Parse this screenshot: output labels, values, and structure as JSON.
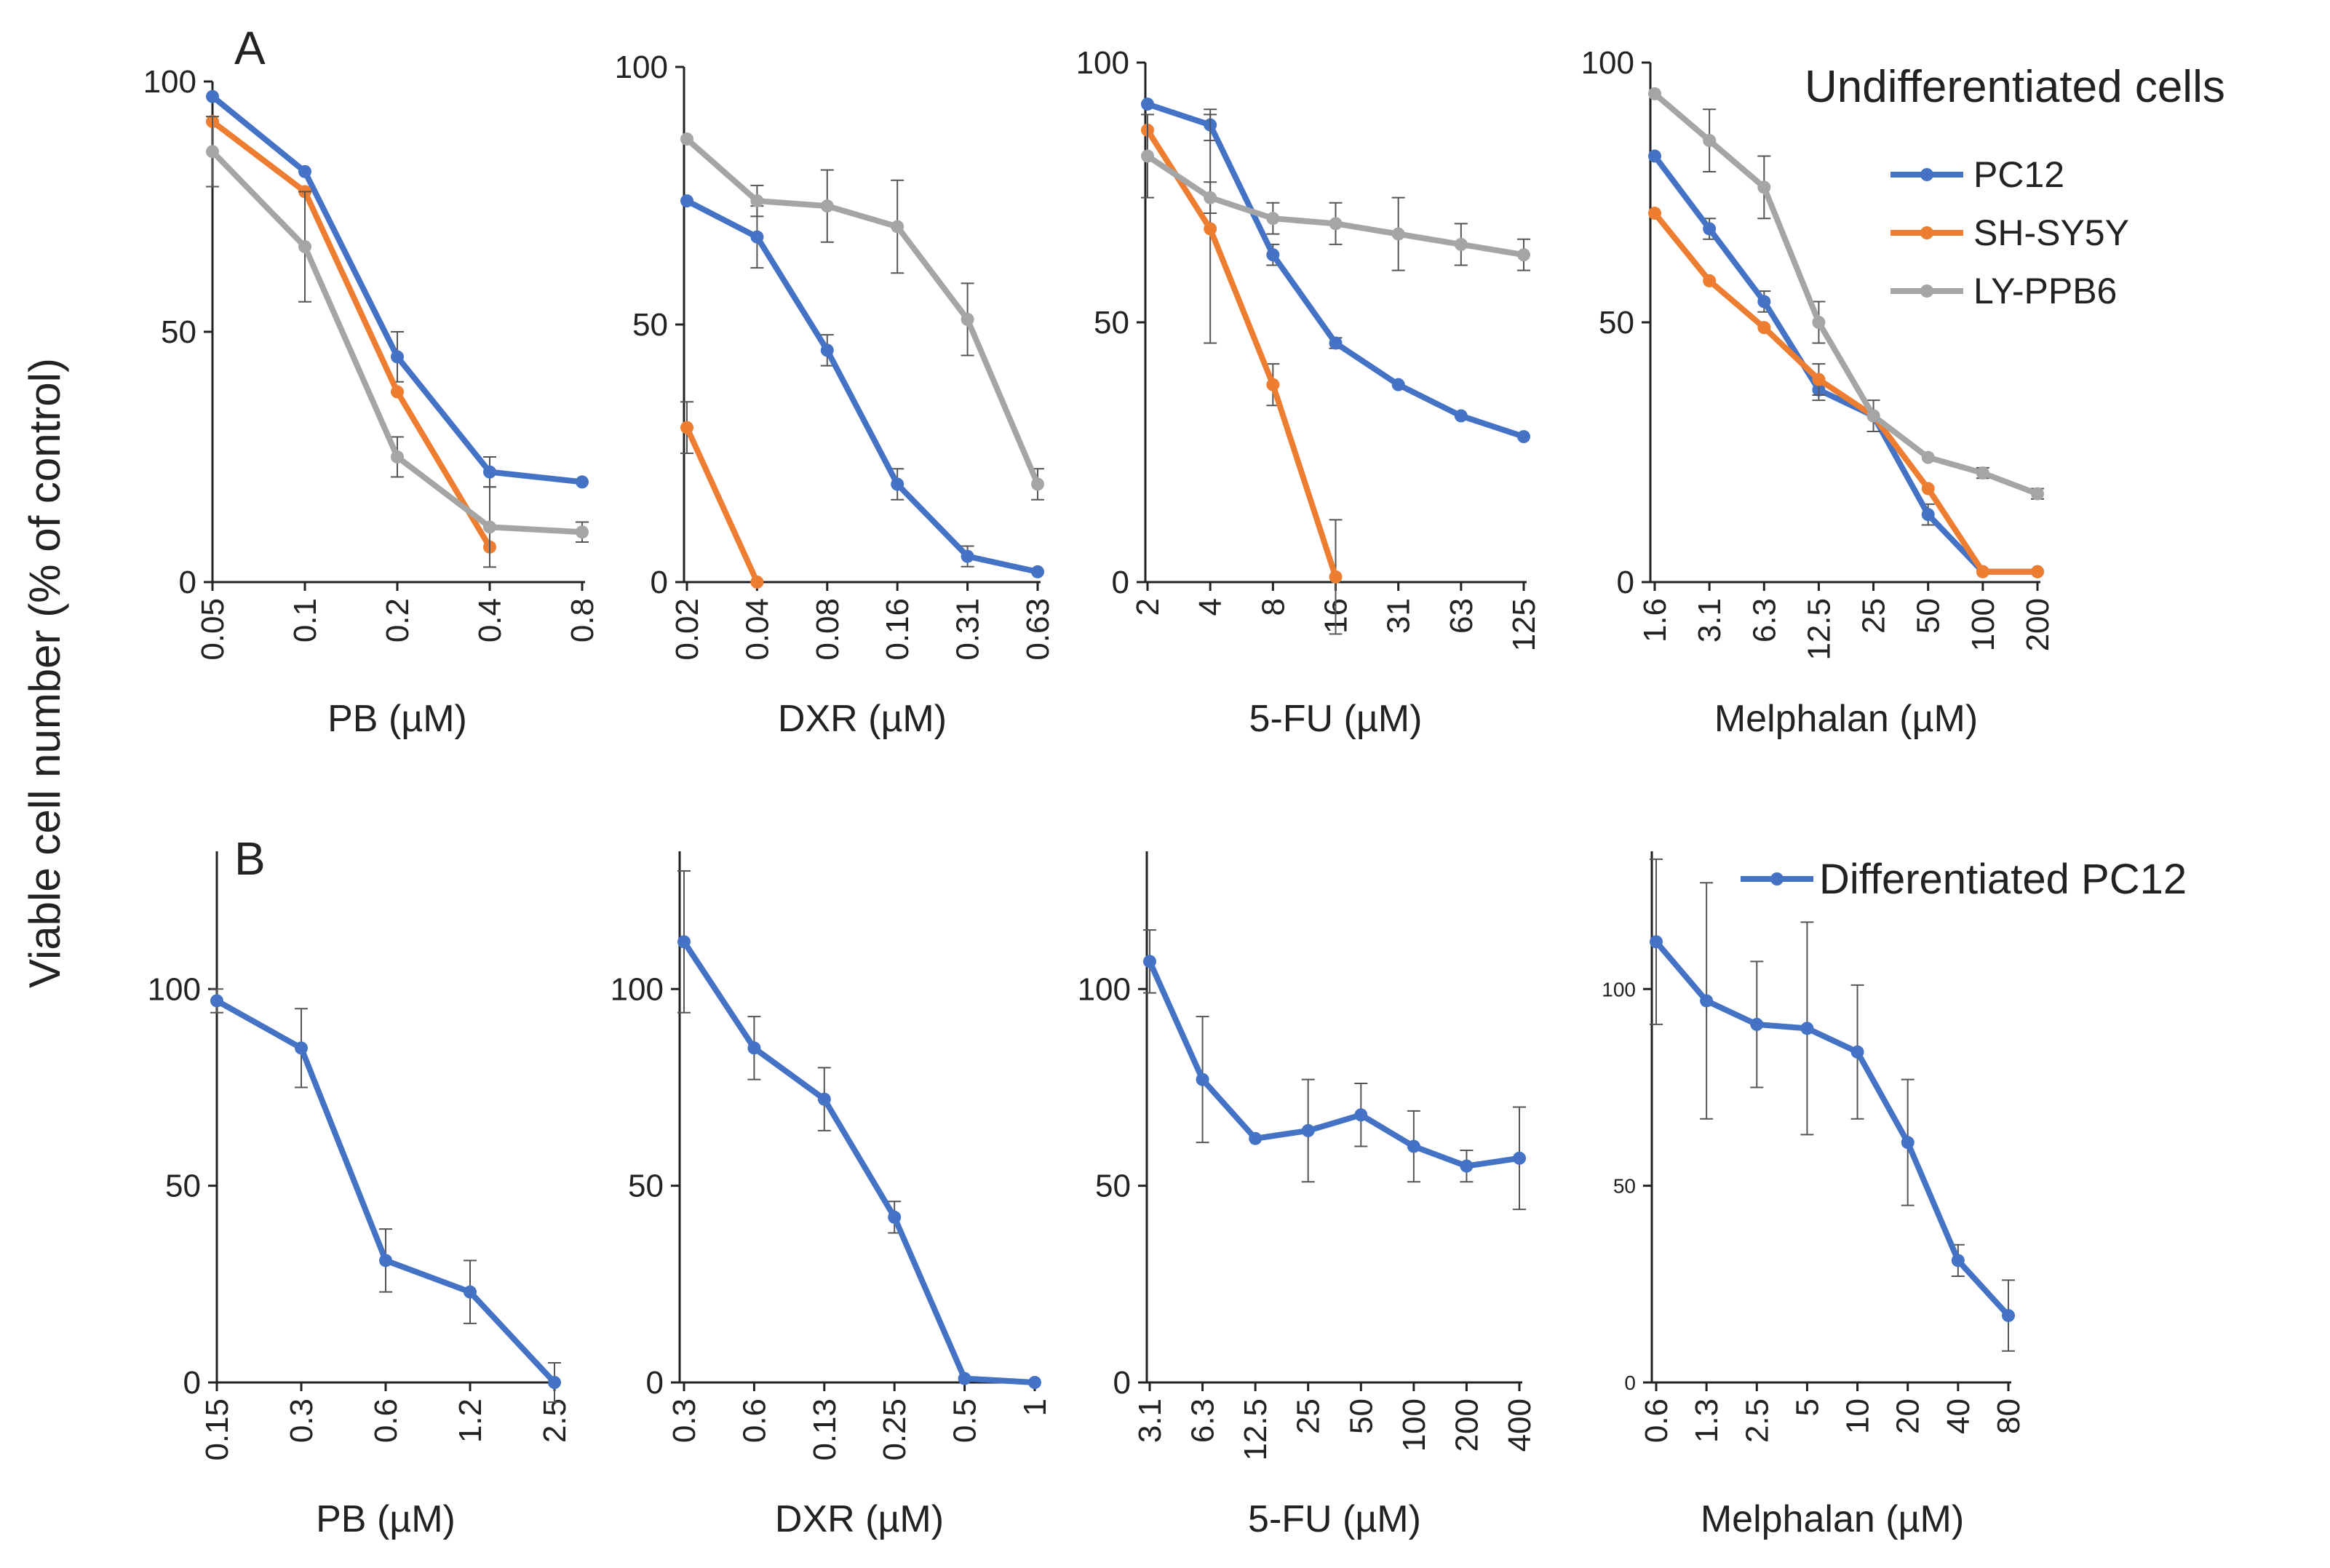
{
  "figure": {
    "ylabel": "Viable cell number  (% of control)",
    "panel_labels": [
      "A",
      "B"
    ],
    "legend_top": {
      "title": "Undifferentiated cells",
      "entries": [
        "PC12",
        "SH-SY5Y",
        "LY-PPB6"
      ]
    },
    "legend_bottom": {
      "entries": [
        "Differentiated PC12"
      ]
    },
    "colors": {
      "PC12": "#4472C4",
      "SH-SY5Y": "#ED7D31",
      "LY-PPB6": "#A5A5A5",
      "Differentiated PC12": "#4472C4",
      "axis": "#222222",
      "errorbar": "#555555"
    }
  },
  "chart_data": [
    {
      "type": "line",
      "panel": "A",
      "title": "",
      "xlabel": "PB (µM)",
      "ylabel": "",
      "categories": [
        "0.05",
        "0.1",
        "0.2",
        "0.4",
        "0.8"
      ],
      "ylim": [
        0,
        100
      ],
      "yticks": [
        "0",
        "50",
        "100"
      ],
      "series": [
        {
          "name": "PC12",
          "values": [
            97,
            82,
            45,
            22,
            20
          ],
          "errors": [
            0,
            0,
            5,
            3,
            0
          ]
        },
        {
          "name": "SH-SY5Y",
          "values": [
            92,
            78,
            38,
            7,
            null
          ],
          "errors": [
            0,
            0,
            0,
            0,
            0
          ]
        },
        {
          "name": "LY-PPB6",
          "values": [
            86,
            67,
            25,
            11,
            10
          ],
          "errors": [
            7,
            11,
            4,
            8,
            2
          ]
        }
      ]
    },
    {
      "type": "line",
      "panel": "A",
      "title": "",
      "xlabel": "DXR (µM)",
      "ylabel": "",
      "categories": [
        "0.02",
        "0.04",
        "0.08",
        "0.16",
        "0.31",
        "0.63"
      ],
      "ylim": [
        0,
        100
      ],
      "yticks": [
        "0",
        "50",
        "100"
      ],
      "series": [
        {
          "name": "PC12",
          "values": [
            74,
            67,
            45,
            19,
            5,
            2
          ],
          "errors": [
            0,
            6,
            3,
            3,
            2,
            0
          ]
        },
        {
          "name": "SH-SY5Y",
          "values": [
            30,
            0,
            null,
            null,
            null,
            null
          ],
          "errors": [
            5,
            0,
            0,
            0,
            0,
            0
          ]
        },
        {
          "name": "LY-PPB6",
          "values": [
            86,
            74,
            73,
            69,
            51,
            19
          ],
          "errors": [
            0,
            3,
            7,
            9,
            7,
            3
          ]
        }
      ]
    },
    {
      "type": "line",
      "panel": "A",
      "title": "",
      "xlabel": "5-FU (µM)",
      "ylabel": "",
      "categories": [
        "2",
        "4",
        "8",
        "16",
        "31",
        "63",
        "125"
      ],
      "ylim": [
        0,
        100
      ],
      "yticks": [
        "0",
        "50",
        "100"
      ],
      "series": [
        {
          "name": "PC12",
          "values": [
            92,
            88,
            63,
            46,
            38,
            32,
            28
          ],
          "errors": [
            0,
            3,
            2,
            1,
            0,
            0,
            0
          ]
        },
        {
          "name": "SH-SY5Y",
          "values": [
            87,
            68,
            38,
            1,
            null,
            null,
            null
          ],
          "errors": [
            0,
            22,
            4,
            11,
            0,
            0,
            0
          ]
        },
        {
          "name": "LY-PPB6",
          "values": [
            82,
            74,
            70,
            69,
            67,
            65,
            63
          ],
          "errors": [
            8,
            3,
            3,
            4,
            7,
            4,
            3
          ]
        }
      ]
    },
    {
      "type": "line",
      "panel": "A",
      "title": "",
      "xlabel": "Melphalan (µM)",
      "ylabel": "",
      "categories": [
        "1.6",
        "3.1",
        "6.3",
        "12.5",
        "25",
        "50",
        "100",
        "200"
      ],
      "ylim": [
        0,
        100
      ],
      "yticks": [
        "0",
        "50",
        "100"
      ],
      "series": [
        {
          "name": "PC12",
          "values": [
            82,
            68,
            54,
            37,
            32,
            13,
            2,
            2
          ],
          "errors": [
            0,
            2,
            2,
            2,
            0,
            2,
            0,
            0
          ]
        },
        {
          "name": "SH-SY5Y",
          "values": [
            71,
            58,
            49,
            39,
            32,
            18,
            2,
            2
          ],
          "errors": [
            0,
            0,
            0,
            3,
            0,
            0,
            0,
            0
          ]
        },
        {
          "name": "LY-PPB6",
          "values": [
            94,
            85,
            76,
            50,
            32,
            24,
            21,
            17
          ],
          "errors": [
            0,
            6,
            6,
            4,
            3,
            0,
            1,
            1
          ]
        }
      ]
    },
    {
      "type": "line",
      "panel": "B",
      "title": "",
      "xlabel": "PB (µM)",
      "ylabel": "",
      "categories": [
        "0.15",
        "0.3",
        "0.6",
        "1.2",
        "2.5"
      ],
      "ylim": [
        0,
        135
      ],
      "yticks": [
        "0",
        "50",
        "100"
      ],
      "series": [
        {
          "name": "Differentiated PC12",
          "values": [
            97,
            85,
            31,
            23,
            0
          ],
          "errors": [
            3,
            10,
            8,
            8,
            5
          ]
        }
      ]
    },
    {
      "type": "line",
      "panel": "B",
      "title": "",
      "xlabel": "DXR (µM)",
      "ylabel": "",
      "categories": [
        "0.3",
        "0.6",
        "0.13",
        "0.25",
        "0.5",
        "1"
      ],
      "ylim": [
        0,
        135
      ],
      "yticks": [
        "0",
        "50",
        "100"
      ],
      "series": [
        {
          "name": "Differentiated PC12",
          "values": [
            112,
            85,
            72,
            42,
            1,
            0
          ],
          "errors": [
            18,
            8,
            8,
            4,
            0,
            0
          ]
        }
      ]
    },
    {
      "type": "line",
      "panel": "B",
      "title": "",
      "xlabel": "5-FU (µM)",
      "ylabel": "",
      "categories": [
        "3.1",
        "6.3",
        "12.5",
        "25",
        "50",
        "100",
        "200",
        "400"
      ],
      "ylim": [
        0,
        135
      ],
      "yticks": [
        "0",
        "50",
        "100"
      ],
      "series": [
        {
          "name": "Differentiated PC12",
          "values": [
            107,
            77,
            62,
            64,
            68,
            60,
            55,
            57
          ],
          "errors": [
            8,
            16,
            0,
            13,
            8,
            9,
            4,
            13
          ]
        }
      ]
    },
    {
      "type": "line",
      "panel": "B",
      "title": "",
      "xlabel": "Melphalan (µM)",
      "ylabel": "",
      "categories": [
        "0.6",
        "1.3",
        "2.5",
        "5",
        "10",
        "20",
        "40",
        "80"
      ],
      "ylim": [
        0,
        135
      ],
      "yticks": [
        "0",
        "50",
        "100"
      ],
      "small_ticks": true,
      "series": [
        {
          "name": "Differentiated PC12",
          "values": [
            112,
            97,
            91,
            90,
            84,
            61,
            31,
            17
          ],
          "errors": [
            21,
            30,
            16,
            27,
            17,
            16,
            4,
            9
          ]
        }
      ]
    }
  ]
}
